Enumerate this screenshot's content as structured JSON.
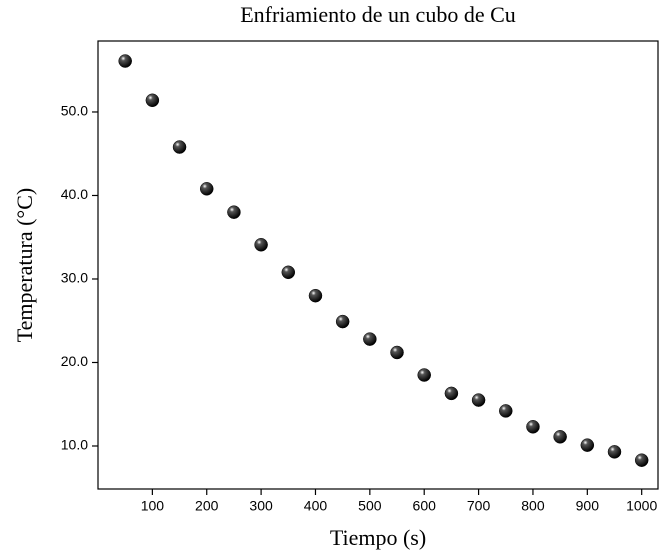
{
  "chart_data": {
    "type": "scatter",
    "title": "Enfriamiento de un cubo de Cu",
    "x_label": "Tiempo (s)",
    "y_label": "Temperatura (°C)",
    "series": [
      {
        "name": "Temperatura",
        "color": "#000000",
        "x": [
          50,
          100,
          150,
          200,
          250,
          300,
          350,
          400,
          450,
          500,
          550,
          600,
          650,
          700,
          750,
          800,
          850,
          900,
          950,
          1000
        ],
        "values": [
          56.1,
          51.4,
          45.8,
          40.8,
          38.0,
          34.1,
          30.8,
          28.0,
          24.9,
          22.8,
          21.2,
          18.5,
          16.3,
          15.5,
          14.2,
          12.3,
          11.1,
          10.1,
          9.3,
          8.3
        ]
      }
    ],
    "xlim": [
      0,
      1030
    ],
    "xticks": [
      100,
      200,
      300,
      400,
      500,
      600,
      700,
      800,
      900,
      1000
    ],
    "ylim": [
      4.85,
      58.5
    ],
    "yticks": [
      {
        "value": 10,
        "label": "10.0"
      },
      {
        "value": 20,
        "label": "20.0"
      },
      {
        "value": 30,
        "label": "30.0"
      },
      {
        "value": 40,
        "label": "40.0"
      },
      {
        "value": 50,
        "label": "50.0"
      }
    ],
    "grid": false
  }
}
